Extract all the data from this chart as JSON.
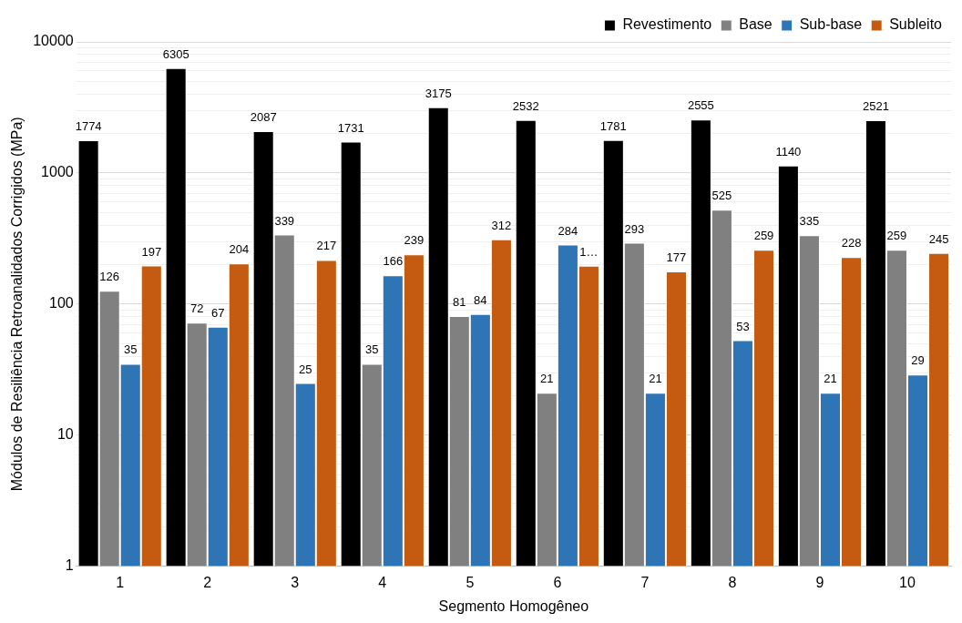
{
  "chart_data": {
    "type": "bar",
    "log": "y",
    "xlabel": "Segmento Homogêneo",
    "ylabel": "Módulos de Resiliência Retroanalidados Corrigidos (MPa)",
    "categories": [
      "1",
      "2",
      "3",
      "4",
      "5",
      "6",
      "7",
      "8",
      "9",
      "10"
    ],
    "series": [
      {
        "name": "Revestimento",
        "color": "#000000",
        "values": [
          1774,
          6305,
          2087,
          1731,
          3175,
          2532,
          1781,
          2555,
          1140,
          2521
        ],
        "value_labels": [
          "1774",
          "6305",
          "2087",
          "1731",
          "3175",
          "2532",
          "1781",
          "2555",
          "1140",
          "2521"
        ]
      },
      {
        "name": "Base",
        "color": "#808080",
        "values": [
          126,
          72,
          339,
          35,
          81,
          21,
          293,
          525,
          335,
          259
        ],
        "value_labels": [
          "126",
          "72",
          "339",
          "35",
          "81",
          "21",
          "293",
          "525",
          "335",
          "259"
        ]
      },
      {
        "name": "Sub-base",
        "color": "#2e75b6",
        "values": [
          35,
          67,
          25,
          166,
          84,
          284,
          21,
          53,
          21,
          29
        ],
        "value_labels": [
          "35",
          "67",
          "25",
          "166",
          "84",
          "284",
          "21",
          "53",
          "21",
          "29"
        ]
      },
      {
        "name": "Subleito",
        "color": "#c55a11",
        "values": [
          197,
          204,
          217,
          239,
          312,
          196,
          177,
          259,
          228,
          245
        ],
        "value_labels": [
          "197",
          "204",
          "217",
          "239",
          "312",
          "1…",
          "177",
          "259",
          "228",
          "245"
        ]
      }
    ],
    "ylim": [
      1,
      10000
    ],
    "yticks": [
      1,
      {
        "value": 2,
        "label": null
      },
      {
        "value": 3,
        "label": null
      },
      {
        "value": 4,
        "label": null
      },
      {
        "value": 5,
        "label": null
      },
      {
        "value": 6,
        "label": null
      },
      {
        "value": 7,
        "label": null
      },
      {
        "value": 8,
        "label": null
      },
      {
        "value": 9,
        "label": null
      },
      10,
      {
        "value": 20,
        "label": null
      },
      {
        "value": 30,
        "label": null
      },
      {
        "value": 40,
        "label": null
      },
      {
        "value": 50,
        "label": null
      },
      {
        "value": 60,
        "label": null
      },
      {
        "value": 70,
        "label": null
      },
      {
        "value": 80,
        "label": null
      },
      {
        "value": 90,
        "label": null
      },
      100,
      {
        "value": 200,
        "label": null
      },
      {
        "value": 300,
        "label": null
      },
      {
        "value": 400,
        "label": null
      },
      {
        "value": 500,
        "label": null
      },
      {
        "value": 600,
        "label": null
      },
      {
        "value": 700,
        "label": null
      },
      {
        "value": 800,
        "label": null
      },
      {
        "value": 900,
        "label": null
      },
      1000,
      {
        "value": 2000,
        "label": null
      },
      {
        "value": 3000,
        "label": null
      },
      {
        "value": 4000,
        "label": null
      },
      {
        "value": 5000,
        "label": null
      },
      {
        "value": 6000,
        "label": null
      },
      {
        "value": 7000,
        "label": null
      },
      {
        "value": 8000,
        "label": null
      },
      {
        "value": 9000,
        "label": null
      },
      10000
    ],
    "grid": "y",
    "legend": "top right"
  }
}
